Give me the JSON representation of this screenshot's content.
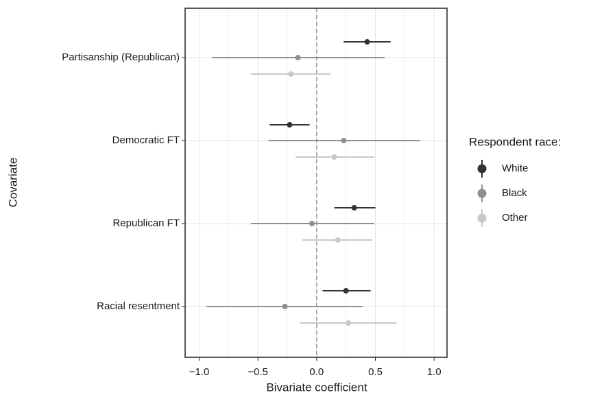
{
  "chart_data": {
    "type": "coefplot",
    "x_label": "Bivariate coefficient",
    "y_label": "Covariate",
    "categories": [
      "Partisanship (Republican)",
      "Democratic FT",
      "Republican FT",
      "Racial resentment"
    ],
    "series": [
      {
        "name": "White",
        "color": "#333333",
        "values": [
          0.43,
          -0.23,
          0.32,
          0.25
        ],
        "lower": [
          0.23,
          -0.4,
          0.15,
          0.05
        ],
        "upper": [
          0.63,
          -0.06,
          0.5,
          0.46
        ]
      },
      {
        "name": "Black",
        "color": "#8f8f8f",
        "values": [
          -0.16,
          0.23,
          -0.04,
          -0.27
        ],
        "lower": [
          -0.89,
          -0.41,
          -0.56,
          -0.94
        ],
        "upper": [
          0.58,
          0.88,
          0.49,
          0.39
        ]
      },
      {
        "name": "Other",
        "color": "#c8c8c8",
        "values": [
          -0.22,
          0.15,
          0.18,
          0.27
        ],
        "lower": [
          -0.56,
          -0.18,
          -0.12,
          -0.14
        ],
        "upper": [
          0.12,
          0.49,
          0.47,
          0.68
        ]
      }
    ],
    "xlim": [
      -1.12,
      1.11
    ],
    "xticks": [
      {
        "value": -1,
        "label": "−1.0"
      },
      {
        "value": -0.5,
        "label": "−0.5"
      },
      {
        "value": 0,
        "label": "0.0"
      },
      0.5,
      {
        "value": 1,
        "label": "1.0"
      }
    ],
    "x_minor_grid": [
      -0.75,
      -0.25,
      0.25,
      0.75
    ],
    "reference_line": 0,
    "grid": true,
    "legend_title": "Respondent race:",
    "legend_position": "right"
  }
}
